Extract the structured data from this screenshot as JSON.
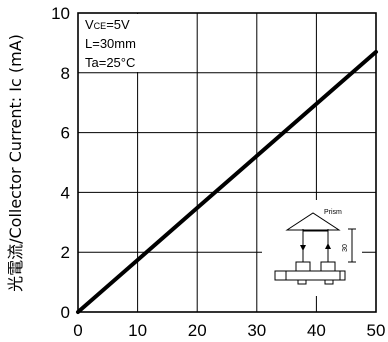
{
  "chart_data": {
    "type": "line",
    "ylabel": "光電流/Collector Current: Ic (mA)",
    "xlabel": "",
    "xlim": [
      0,
      50
    ],
    "ylim": [
      0,
      10
    ],
    "x_ticks": [
      "0",
      "10",
      "20",
      "30",
      "40",
      "50"
    ],
    "y_ticks": [
      "0",
      "2",
      "4",
      "6",
      "8",
      "10"
    ],
    "grid": true,
    "series": [
      {
        "x": [
          0,
          10,
          20,
          30,
          40,
          50
        ],
        "y": [
          0,
          1.74,
          3.48,
          5.22,
          6.96,
          8.7
        ],
        "color": "#000000"
      }
    ],
    "conditions": {
      "vce_main": "V",
      "vce_sub": "CE",
      "vce_value": "=5V",
      "distance": "L=30mm",
      "temperature": "Ta=25°C"
    },
    "inset": {
      "prism_label": "Prism",
      "distance_label": "30"
    }
  }
}
